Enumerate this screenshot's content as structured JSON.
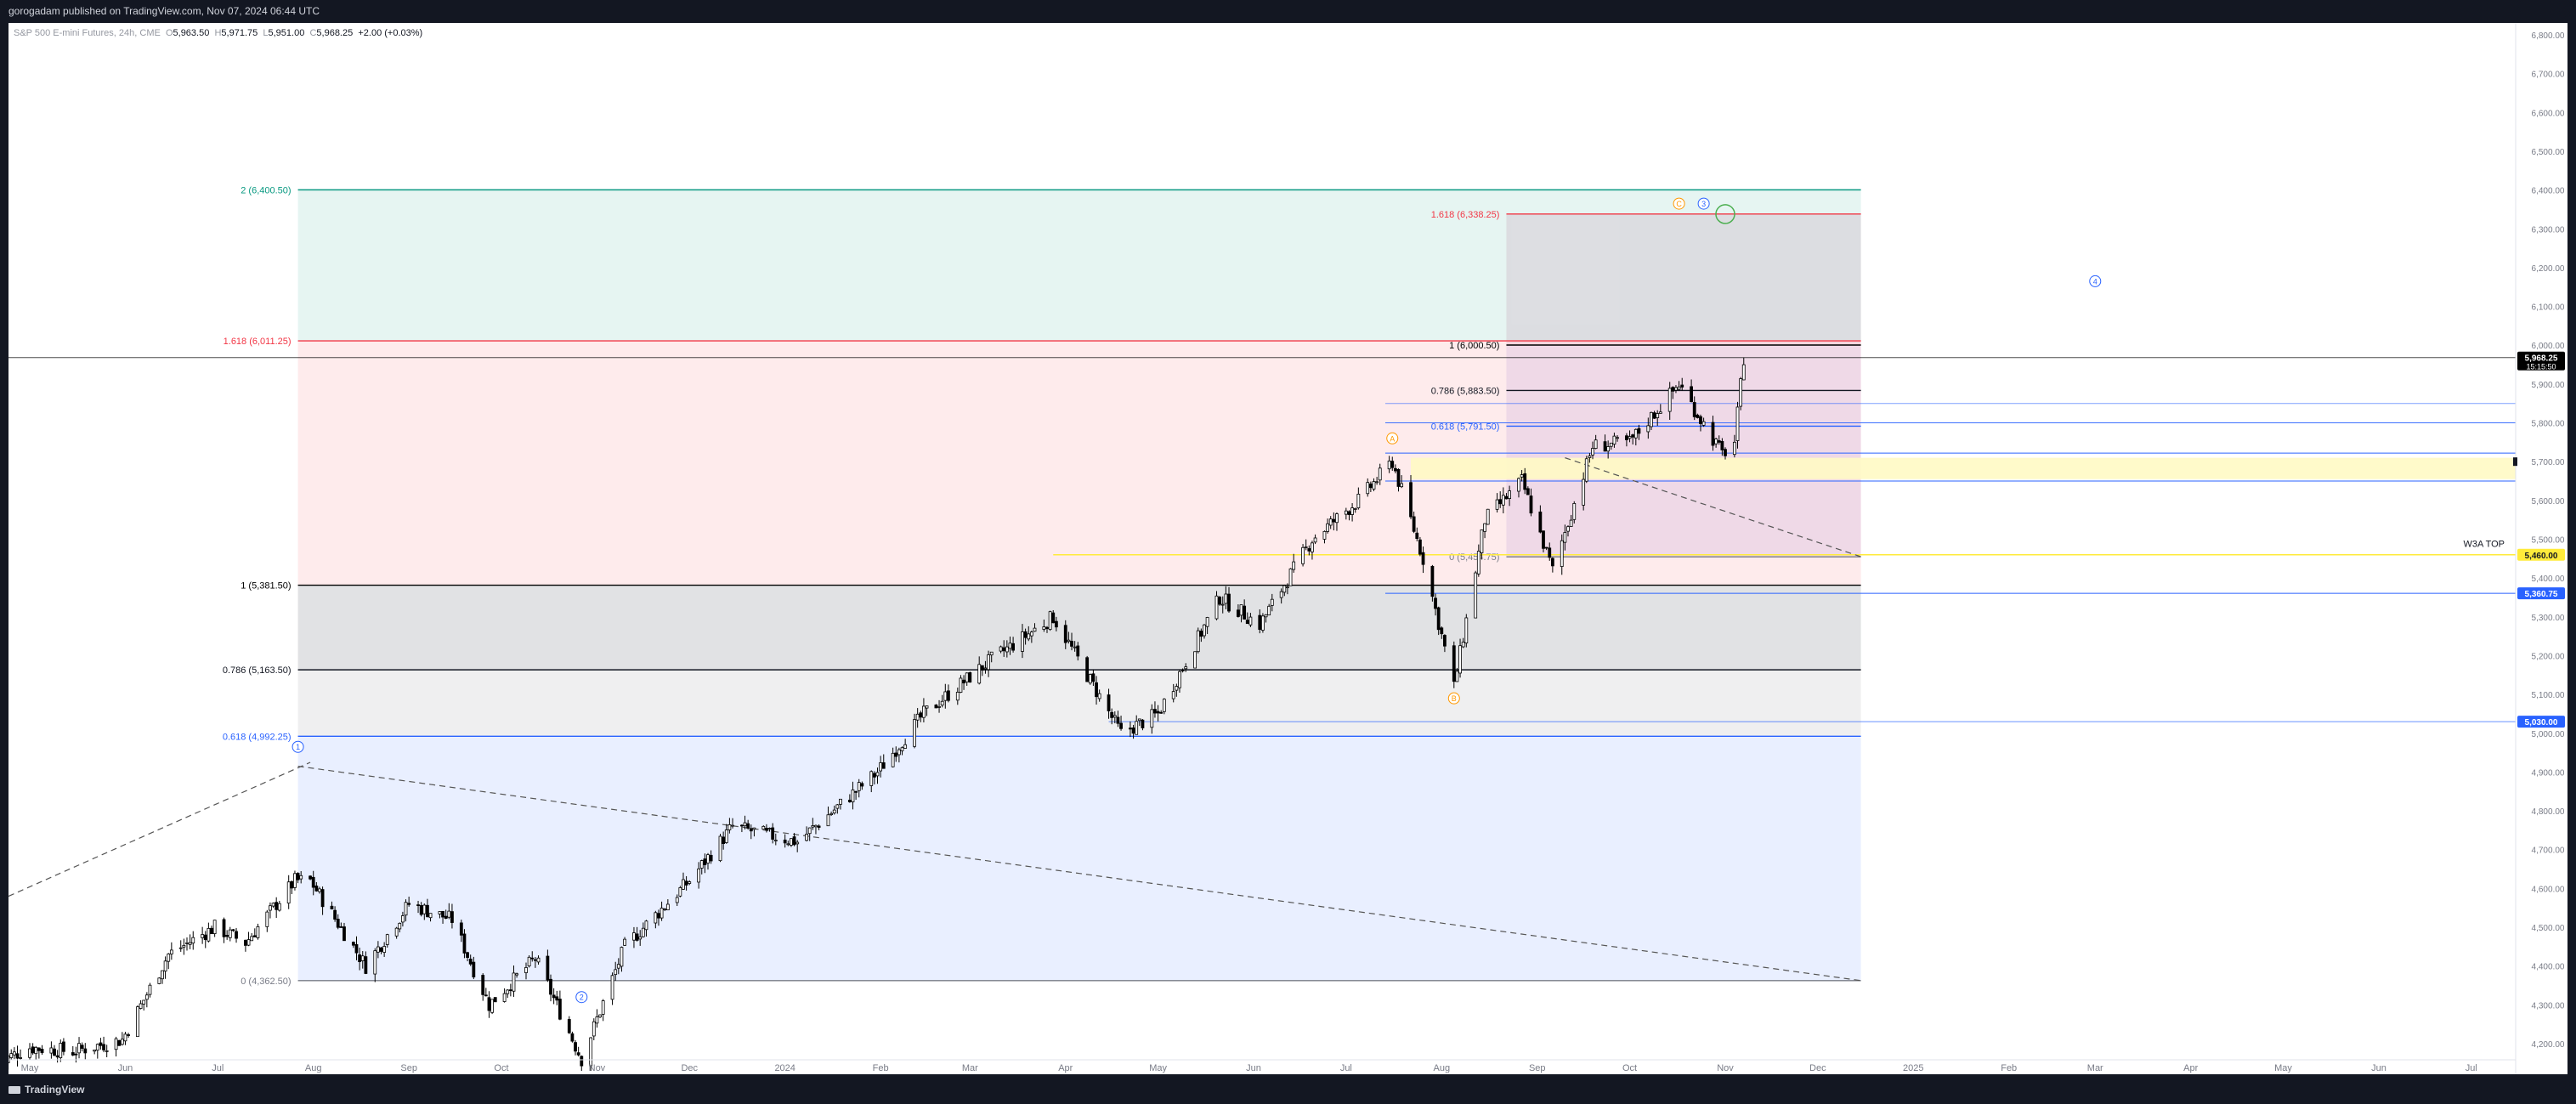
{
  "header": {
    "publisher_line": "gorogadam published on TradingView.com, Nov 07, 2024 06:44 UTC"
  },
  "legend": {
    "symbol": "S&P 500 E-mini Futures, 24h, CME",
    "open_label": "O",
    "open": "5,963.50",
    "high_label": "H",
    "high": "5,971.75",
    "low_label": "L",
    "low": "5,951.00",
    "close_label": "C",
    "close": "5,968.25",
    "change": "+2.00 (+0.03%)"
  },
  "footer": {
    "brand": "TradingView"
  },
  "chart_data": {
    "type": "candlestick",
    "ylim": [
      4200,
      6800
    ],
    "y_ticks": [
      "6,800.00",
      "6,700.00",
      "6,600.00",
      "6,500.00",
      "6,400.00",
      "6,300.00",
      "6,200.00",
      "6,100.00",
      "6,000.00",
      "5,900.00",
      "5,800.00",
      "5,700.00",
      "5,600.00",
      "5,500.00",
      "5,400.00",
      "5,300.00",
      "5,200.00",
      "5,100.00",
      "5,000.00",
      "4,900.00",
      "4,800.00",
      "4,700.00",
      "4,600.00",
      "4,500.00",
      "4,400.00",
      "4,300.00",
      "4,200.00"
    ],
    "x_ticks": [
      {
        "label": "May",
        "date": "2023-05-01"
      },
      {
        "label": "Jun",
        "date": "2023-06-01"
      },
      {
        "label": "Jul",
        "date": "2023-07-01"
      },
      {
        "label": "Aug",
        "date": "2023-08-01"
      },
      {
        "label": "Sep",
        "date": "2023-09-01"
      },
      {
        "label": "Oct",
        "date": "2023-10-01"
      },
      {
        "label": "Nov",
        "date": "2023-11-01"
      },
      {
        "label": "Dec",
        "date": "2023-12-01"
      },
      {
        "label": "2024",
        "date": "2024-01-01"
      },
      {
        "label": "Feb",
        "date": "2024-02-01"
      },
      {
        "label": "Mar",
        "date": "2024-03-01"
      },
      {
        "label": "Apr",
        "date": "2024-04-01"
      },
      {
        "label": "May",
        "date": "2024-05-01"
      },
      {
        "label": "Jun",
        "date": "2024-06-01"
      },
      {
        "label": "Jul",
        "date": "2024-07-01"
      },
      {
        "label": "Aug",
        "date": "2024-08-01"
      },
      {
        "label": "Sep",
        "date": "2024-09-01"
      },
      {
        "label": "Oct",
        "date": "2024-10-01"
      },
      {
        "label": "Nov",
        "date": "2024-11-01"
      },
      {
        "label": "Dec",
        "date": "2024-12-01"
      },
      {
        "label": "2025",
        "date": "2025-01-01"
      },
      {
        "label": "Feb",
        "date": "2025-02-01"
      },
      {
        "label": "Mar",
        "date": "2025-03-01"
      },
      {
        "label": "Apr",
        "date": "2025-04-01"
      },
      {
        "label": "May",
        "date": "2025-05-01"
      },
      {
        "label": "Jun",
        "date": "2025-06-01"
      },
      {
        "label": "Jul",
        "date": "2025-07-01"
      }
    ],
    "price_path": [
      [
        "2023-04-20",
        4150
      ],
      [
        "2023-05-01",
        4190
      ],
      [
        "2023-05-15",
        4180
      ],
      [
        "2023-05-31",
        4210
      ],
      [
        "2023-06-15",
        4430
      ],
      [
        "2023-06-30",
        4500
      ],
      [
        "2023-07-10",
        4460
      ],
      [
        "2023-07-26",
        4620
      ],
      [
        "2023-07-31",
        4620
      ],
      [
        "2023-08-18",
        4400
      ],
      [
        "2023-09-01",
        4560
      ],
      [
        "2023-09-15",
        4520
      ],
      [
        "2023-09-27",
        4300
      ],
      [
        "2023-10-12",
        4420
      ],
      [
        "2023-10-27",
        4160
      ],
      [
        "2023-11-10",
        4450
      ],
      [
        "2023-12-01",
        4620
      ],
      [
        "2023-12-15",
        4760
      ],
      [
        "2024-01-05",
        4720
      ],
      [
        "2024-01-31",
        4900
      ],
      [
        "2024-02-15",
        5050
      ],
      [
        "2024-03-08",
        5190
      ],
      [
        "2024-03-28",
        5300
      ],
      [
        "2024-04-19",
        5000
      ],
      [
        "2024-05-01",
        5050
      ],
      [
        "2024-05-21",
        5350
      ],
      [
        "2024-06-03",
        5280
      ],
      [
        "2024-06-20",
        5500
      ],
      [
        "2024-07-05",
        5600
      ],
      [
        "2024-07-16",
        5700
      ],
      [
        "2024-07-26",
        5450
      ],
      [
        "2024-08-05",
        5120
      ],
      [
        "2024-08-15",
        5550
      ],
      [
        "2024-08-27",
        5650
      ],
      [
        "2024-09-06",
        5420
      ],
      [
        "2024-09-19",
        5740
      ],
      [
        "2024-10-01",
        5750
      ],
      [
        "2024-10-17",
        5900
      ],
      [
        "2024-10-31",
        5720
      ],
      [
        "2024-11-04",
        5750
      ],
      [
        "2024-11-07",
        5968.25
      ]
    ],
    "fib_left": {
      "range": [
        "2023-07-27",
        "2024-12-15"
      ],
      "levels": [
        {
          "label": "2 (6,400.50)",
          "price": 6400.5,
          "color": "#089981"
        },
        {
          "label": "1.618 (6,011.25)",
          "price": 6011.25,
          "color": "#f23645"
        },
        {
          "label": "1 (5,381.50)",
          "price": 5381.5,
          "color": "#000000"
        },
        {
          "label": "0.786 (5,163.50)",
          "price": 5163.5,
          "color": "#131722"
        },
        {
          "label": "0.618 (4,992.25)",
          "price": 4992.25,
          "color": "#2962ff"
        },
        {
          "label": "0 (4,362.50)",
          "price": 4362.5,
          "color": "#787b86"
        }
      ]
    },
    "fib_right": {
      "range": [
        "2024-08-22",
        "2024-12-15"
      ],
      "levels": [
        {
          "label": "1.618 (6,338.25)",
          "price": 6338.25,
          "color": "#f23645"
        },
        {
          "label": "1 (6,000.50)",
          "price": 6000.5,
          "color": "#000000"
        },
        {
          "label": "0.786 (5,883.50)",
          "price": 5883.5,
          "color": "#131722"
        },
        {
          "label": "0.618 (5,791.50)",
          "price": 5791.5,
          "color": "#2962ff"
        },
        {
          "label": "0 (5,454.75)",
          "price": 5454.75,
          "color": "#787b86"
        }
      ]
    },
    "price_badges": [
      {
        "label": "5,968.25",
        "sub": "15:15:50",
        "price": 5968.25,
        "color": "#000000"
      },
      {
        "label": "5,460.00",
        "price": 5460,
        "color": "#ffeb3b"
      },
      {
        "label": "5,360.75",
        "price": 5360.75,
        "color": "#2962ff"
      },
      {
        "label": "5,030.00",
        "price": 5030,
        "color": "#2962ff"
      }
    ],
    "annotations": [
      {
        "text": "W3A TOP",
        "date": "2025-07-20",
        "price": 5480
      },
      {
        "text": "1",
        "date": "2023-07-27",
        "price": 4965,
        "color": "#2962ff"
      },
      {
        "text": "2",
        "date": "2023-10-27",
        "price": 4320,
        "color": "#2962ff"
      },
      {
        "text": "A",
        "date": "2024-07-16",
        "price": 5760,
        "color": "#ff9800"
      },
      {
        "text": "B",
        "date": "2024-08-05",
        "price": 5090,
        "color": "#ff9800"
      },
      {
        "text": "C",
        "date": "2024-10-17",
        "price": 6365,
        "color": "#ff9800"
      },
      {
        "text": "3",
        "date": "2024-10-25",
        "price": 6365,
        "color": "#2962ff"
      },
      {
        "text": "4",
        "date": "2025-03-01",
        "price": 6165,
        "color": "#2962ff"
      }
    ],
    "colors": {
      "up": "#ffffff",
      "down": "#000000",
      "border": "#000000",
      "yellow_band": "#fff9c4"
    }
  }
}
